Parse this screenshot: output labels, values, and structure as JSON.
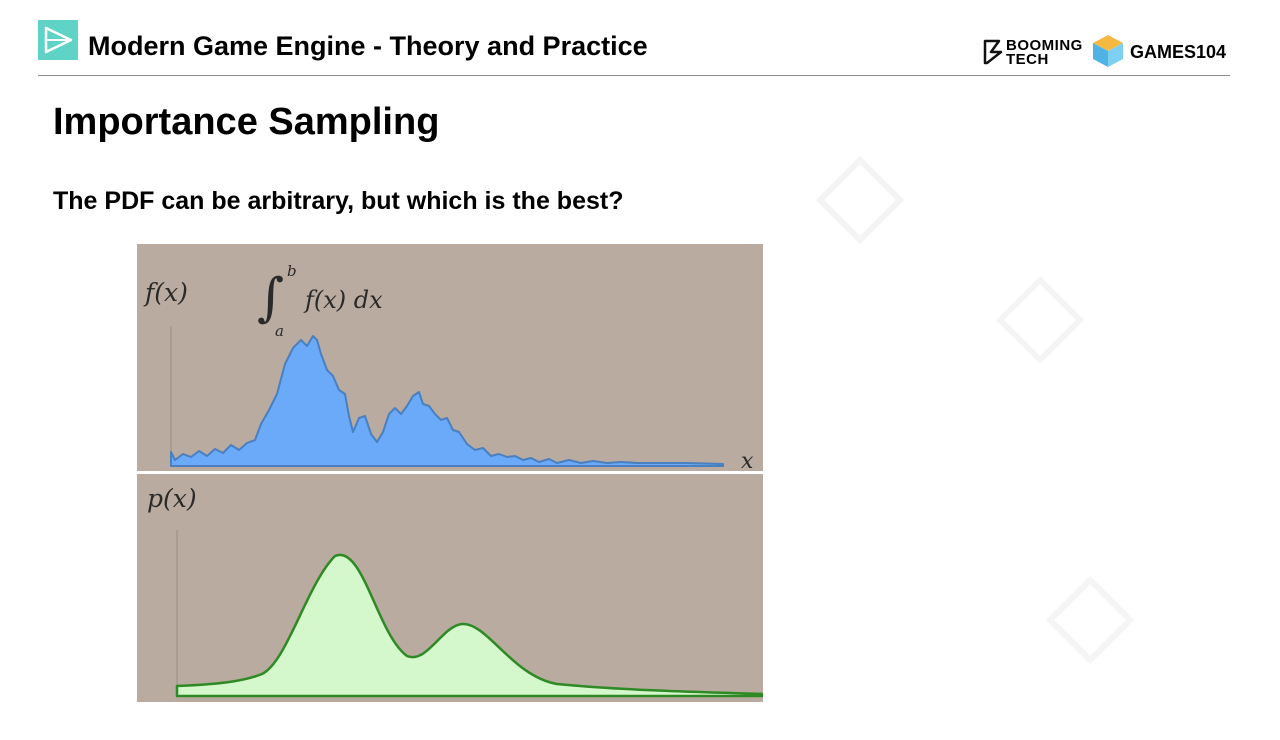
{
  "header": {
    "title": "Modern Game Engine - Theory and Practice",
    "brand_booming_line1": "BOOMING",
    "brand_booming_line2": "TECH",
    "brand_games": "GAMES104"
  },
  "slide": {
    "title": "Importance Sampling",
    "subtitle": "The PDF can be arbitrary, but which is the best?"
  },
  "figure": {
    "fx_label": "f(x)",
    "px_label": "p(x)",
    "x_label": "x",
    "integral_sign": "∫",
    "integral_upper": "b",
    "integral_lower": "a",
    "integral_body": "f(x) dx",
    "colors": {
      "background": "#b9ab9f",
      "fx_fill": "#6aaaf8",
      "fx_stroke": "#4a7fc0",
      "px_fill": "#d4f7cc",
      "px_stroke": "#2f8a25",
      "divider": "#ffffff"
    }
  },
  "icons": {
    "logo": "play-triangle-icon",
    "booming": "booming-tech-logo",
    "games": "cube-icon"
  }
}
